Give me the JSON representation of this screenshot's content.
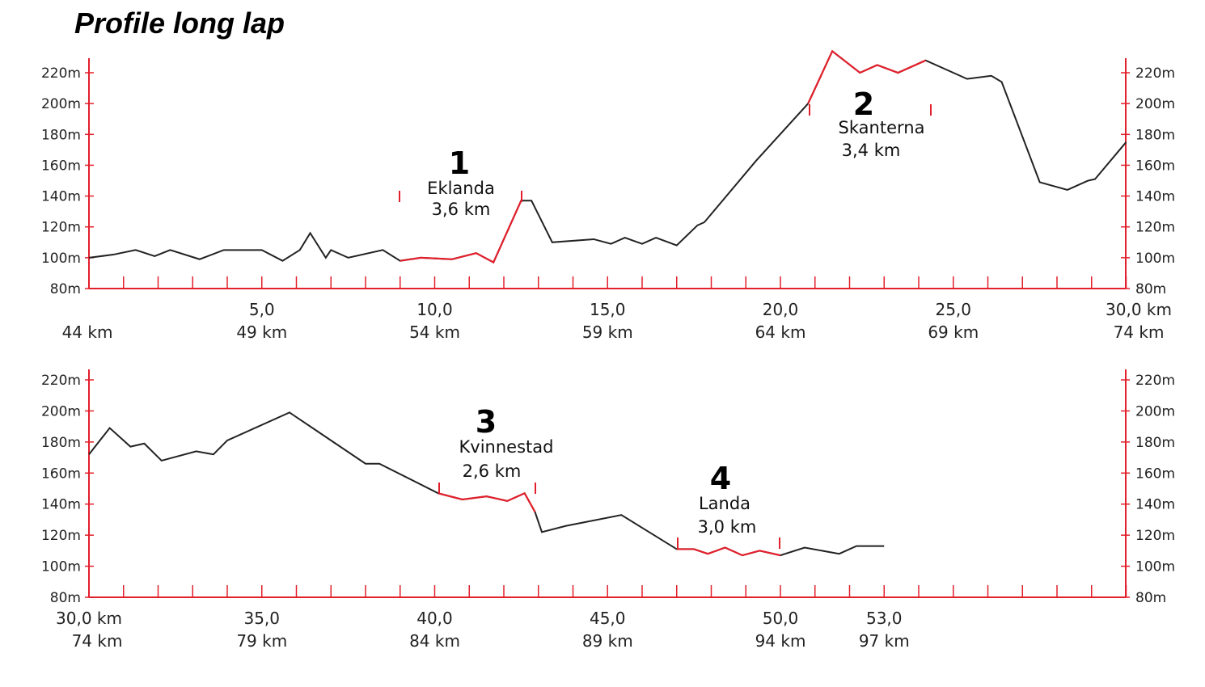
{
  "title": "Profile long lap",
  "chart_data": [
    {
      "type": "line",
      "ylim": [
        80,
        230
      ],
      "xlim": [
        0,
        30
      ],
      "yticks": [
        "80m",
        "100m",
        "120m",
        "140m",
        "160m",
        "180m",
        "200m",
        "220m"
      ],
      "yticks_right": [
        "80m",
        "100m",
        "120m",
        "140m",
        "160m",
        "180m",
        "200m",
        "220m"
      ],
      "xticks": [
        {
          "x": 0,
          "label": "",
          "label2": "44 km"
        },
        {
          "x": 5,
          "label": "5,0",
          "label2": "49 km"
        },
        {
          "x": 10,
          "label": "10,0",
          "label2": "54 km"
        },
        {
          "x": 15,
          "label": "15,0",
          "label2": "59 km"
        },
        {
          "x": 20,
          "label": "20,0",
          "label2": "64 km"
        },
        {
          "x": 25,
          "label": "25,0",
          "label2": "69 km"
        },
        {
          "x": 30,
          "label": "30,0 km",
          "label2": "74 km"
        }
      ],
      "elevation": [
        [
          0,
          100
        ],
        [
          0.7,
          102
        ],
        [
          1.35,
          105
        ],
        [
          1.9,
          101
        ],
        [
          2.35,
          105
        ],
        [
          3.2,
          99
        ],
        [
          3.9,
          105
        ],
        [
          5.0,
          105
        ],
        [
          5.6,
          98
        ],
        [
          6.1,
          105
        ],
        [
          6.4,
          116
        ],
        [
          6.85,
          100
        ],
        [
          7.0,
          105
        ],
        [
          7.5,
          100
        ],
        [
          8.5,
          105
        ],
        [
          9.0,
          98
        ],
        [
          9.6,
          100
        ],
        [
          10.5,
          99
        ],
        [
          11.2,
          103
        ],
        [
          11.7,
          97
        ],
        [
          12.5,
          137
        ],
        [
          12.8,
          137
        ],
        [
          13.4,
          110
        ],
        [
          14.6,
          112
        ],
        [
          15.1,
          109
        ],
        [
          15.5,
          113
        ],
        [
          16.0,
          109
        ],
        [
          16.4,
          113
        ],
        [
          17.0,
          108
        ],
        [
          17.6,
          121
        ],
        [
          17.8,
          123
        ],
        [
          19.3,
          163
        ],
        [
          20.8,
          200
        ],
        [
          21.5,
          234
        ],
        [
          22.3,
          220
        ],
        [
          22.8,
          225
        ],
        [
          23.4,
          220
        ],
        [
          24.2,
          228
        ],
        [
          25.4,
          216
        ],
        [
          26.1,
          218
        ],
        [
          26.4,
          214
        ],
        [
          27.5,
          149
        ],
        [
          28.3,
          144
        ],
        [
          28.9,
          150
        ],
        [
          29.1,
          151
        ],
        [
          30.0,
          175
        ]
      ],
      "segments": [
        {
          "number": "1",
          "name": "Eklanda",
          "distance": "3,6 km",
          "from": 9.0,
          "to": 12.5
        },
        {
          "number": "2",
          "name": "Skanterna",
          "distance": "3,4 km",
          "from": 20.8,
          "to": 24.2
        }
      ],
      "colors": {
        "line": "#222222",
        "segment": "#e2202c",
        "axis": "#e2202c"
      }
    },
    {
      "type": "line",
      "ylim": [
        80,
        230
      ],
      "xlim": [
        30,
        60
      ],
      "yticks": [
        "80m",
        "100m",
        "120m",
        "140m",
        "160m",
        "180m",
        "200m",
        "220m"
      ],
      "yticks_right": [
        "80m",
        "100m",
        "120m",
        "140m",
        "160m",
        "180m",
        "200m",
        "220m"
      ],
      "xticks": [
        {
          "x": 30,
          "label": "30,0 km",
          "label2": "74 km"
        },
        {
          "x": 35,
          "label": "35,0",
          "label2": "79 km"
        },
        {
          "x": 40,
          "label": "40,0",
          "label2": "84 km"
        },
        {
          "x": 45,
          "label": "45,0",
          "label2": "89 km"
        },
        {
          "x": 50,
          "label": "50,0",
          "label2": "94 km"
        },
        {
          "x": 53,
          "label": "53,0",
          "label2": "97 km"
        }
      ],
      "elevation": [
        [
          30.0,
          172
        ],
        [
          30.6,
          189
        ],
        [
          31.2,
          177
        ],
        [
          31.6,
          179
        ],
        [
          32.1,
          168
        ],
        [
          33.1,
          174
        ],
        [
          33.6,
          172
        ],
        [
          34.0,
          181
        ],
        [
          35.8,
          199
        ],
        [
          38.0,
          166
        ],
        [
          38.4,
          166
        ],
        [
          40.1,
          147
        ],
        [
          40.8,
          143
        ],
        [
          41.5,
          145
        ],
        [
          42.1,
          142
        ],
        [
          42.6,
          147
        ],
        [
          42.9,
          135
        ],
        [
          43.1,
          122
        ],
        [
          43.8,
          126
        ],
        [
          45.4,
          133
        ],
        [
          47.0,
          111
        ],
        [
          47.5,
          111
        ],
        [
          47.9,
          108
        ],
        [
          48.4,
          112
        ],
        [
          48.9,
          107
        ],
        [
          49.4,
          110
        ],
        [
          50.0,
          107
        ],
        [
          50.7,
          112
        ],
        [
          51.7,
          108
        ],
        [
          52.2,
          113
        ],
        [
          53.0,
          113
        ]
      ],
      "segments": [
        {
          "number": "3",
          "name": "Kvinnestad",
          "distance": "2,6 km",
          "from": 40.1,
          "to": 42.9
        },
        {
          "number": "4",
          "name": "Landa",
          "distance": "3,0 km",
          "from": 47.0,
          "to": 50.0
        }
      ],
      "colors": {
        "line": "#222222",
        "segment": "#e2202c",
        "axis": "#e2202c"
      }
    }
  ]
}
